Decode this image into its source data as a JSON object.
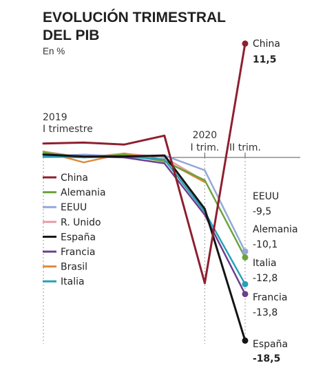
{
  "chart_data": {
    "type": "line",
    "title_lines": [
      "EVOLUCIÓN TRIMESTRAL",
      "DEL PIB"
    ],
    "subtitle": "En %",
    "x_labels": [
      {
        "top": "2019",
        "bottom": "I trimestre"
      },
      {
        "top": "",
        "bottom": ""
      },
      {
        "top": "",
        "bottom": ""
      },
      {
        "top": "",
        "bottom": ""
      },
      {
        "top": "2020",
        "bottom": "I trim."
      },
      {
        "top": "",
        "bottom": "II trim."
      }
    ],
    "ylim": [
      -20,
      14
    ],
    "series": [
      {
        "name": "China",
        "color": "#8e1f2e",
        "values": [
          1.4,
          1.5,
          1.3,
          2.2,
          -12.7,
          11.5
        ]
      },
      {
        "name": "Alemania",
        "color": "#6ba33c",
        "values": [
          0.5,
          0.0,
          0.3,
          -0.4,
          -2.3,
          -10.1
        ]
      },
      {
        "name": "EEUU",
        "color": "#93a8d6",
        "values": [
          0.1,
          0.3,
          0.1,
          0.2,
          -1.3,
          -9.5
        ]
      },
      {
        "name": "R. Unido",
        "color": "#e89aa4",
        "values": [
          0.6,
          0.0,
          0.4,
          0.0,
          -2.4,
          null
        ]
      },
      {
        "name": "España",
        "color": "#141414",
        "values": [
          0.3,
          0.1,
          0.1,
          0.2,
          -5.2,
          -18.5
        ]
      },
      {
        "name": "Francia",
        "color": "#6a3f8c",
        "values": [
          0.3,
          0.1,
          0.0,
          -0.6,
          -5.8,
          -13.8
        ]
      },
      {
        "name": "Brasil",
        "color": "#e08a3c",
        "values": [
          0.6,
          -0.5,
          0.4,
          -0.3,
          -2.5,
          null
        ]
      },
      {
        "name": "Italia",
        "color": "#27a0b8",
        "values": [
          0.1,
          0.0,
          0.1,
          -0.2,
          -5.5,
          -12.8
        ]
      }
    ],
    "end_labels": [
      {
        "series": "China",
        "name": "China",
        "value": "11,5",
        "bold": true
      },
      {
        "series": "EEUU",
        "name": "EEUU",
        "value": "-9,5",
        "bold": false
      },
      {
        "series": "Alemania",
        "name": "Alemania",
        "value": "-10,1",
        "bold": false
      },
      {
        "series": "Italia",
        "name": "Italia",
        "value": "-12,8",
        "bold": false
      },
      {
        "series": "Francia",
        "name": "Francia",
        "value": "-13,8",
        "bold": false
      },
      {
        "series": "España",
        "name": "España",
        "value": "-18,5",
        "bold": true
      }
    ],
    "end_markers": [
      "China",
      "EEUU",
      "Alemania",
      "Italia",
      "Francia",
      "España"
    ]
  }
}
